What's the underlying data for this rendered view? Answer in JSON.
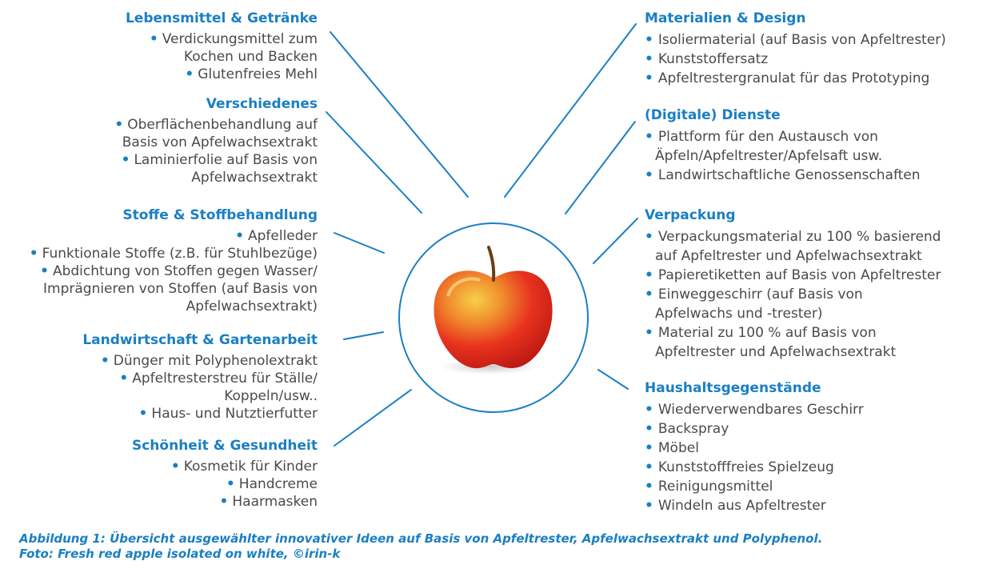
{
  "left_categories": [
    {
      "heading": "Lebensmittel & Getränke",
      "items": [
        "Verdickungsmittel zum\nKochen und Backen",
        "Glutenfreies Mehl"
      ]
    },
    {
      "heading": "Verschiedenes",
      "items": [
        "Oberflächenbehandlung auf\nBasis von Apfelwachsextrakt",
        "Laminierfolie auf Basis von\nApfelwachsextrakt"
      ]
    },
    {
      "heading": "Stoffe & Stoffbehandlung",
      "items": [
        "Apfelleder",
        "Funktionale Stoffe (z.B. für Stuhlbezüge)",
        "Abdichtung von Stoffen gegen Wasser/\nImprägnieren von Stoffen (auf Basis von\nApfelwachsextrakt)"
      ]
    },
    {
      "heading": "Landwirtschaft & Gartenarbeit",
      "items": [
        "Dünger mit Polyphenolextrakt",
        "Apfeltresterstreu für Ställe/\nKoppeln/usw..",
        "Haus- und Nutztierfutter"
      ]
    },
    {
      "heading": "Schönheit & Gesundheit",
      "items": [
        "Kosmetik für Kinder",
        "Handcreme",
        "Haarmasken"
      ]
    }
  ],
  "right_categories": [
    {
      "heading": "Materialien & Design",
      "items": [
        "Isoliermaterial (auf Basis von Apfeltrester)",
        "Kunststoffersatz",
        "Apfeltrestergranulat für das Prototyping"
      ]
    },
    {
      "heading": "(Digitale) Dienste",
      "items": [
        "Plattform für den Austausch von\nÄpfeln/Apfeltrester/Apfelsaft usw.",
        "Landwirtschaftliche Genossenschaften"
      ]
    },
    {
      "heading": "Verpackung",
      "items": [
        "Verpackungsmaterial zu 100 % basierend\nauf Apfeltrester und Apfelwachsextrakt",
        "Papieretiketten auf Basis von Apfeltrester",
        "Einweggeschirr (auf Basis von\nApfelwachs und -trester)",
        "Material zu 100 % auf Basis von\nApfeltrester und Apfelwachsextrakt"
      ]
    },
    {
      "heading": "Haushaltsgegenstände",
      "items": [
        "Wiederverwendbares Geschirr",
        "Backspray",
        "Möbel",
        "Kunststofffreies Spielzeug",
        "Reinigungsmittel",
        "Windeln aus Apfeltrester"
      ]
    }
  ],
  "caption": {
    "line1": "Abbildung 1: Übersicht ausgewählter innovativer Ideen auf Basis von Apfeltrester, Apfelwachsextrakt und Polyphenol.",
    "line2": "Foto: Fresh red apple isolated on white, ©irin-k"
  },
  "colors": {
    "accent": "#1a7fc3",
    "text": "#4a4a4a",
    "apple_red": "#e8321e",
    "apple_yellow": "#f3c23a"
  }
}
